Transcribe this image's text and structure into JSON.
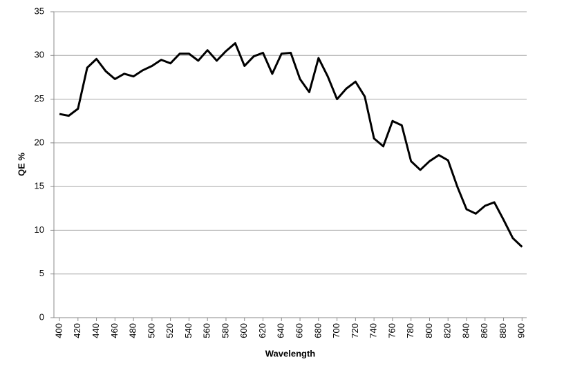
{
  "chart_data": {
    "type": "line",
    "x_label": "Wavelength",
    "y_label": "QE %",
    "x": [
      400,
      410,
      420,
      430,
      440,
      450,
      460,
      470,
      480,
      490,
      500,
      510,
      520,
      530,
      540,
      550,
      560,
      570,
      580,
      590,
      600,
      610,
      620,
      630,
      640,
      650,
      660,
      670,
      680,
      690,
      700,
      710,
      720,
      730,
      740,
      750,
      760,
      770,
      780,
      790,
      800,
      810,
      820,
      830,
      840,
      850,
      860,
      870,
      880,
      890,
      900
    ],
    "series": [
      {
        "color": "#000000",
        "values": [
          23.3,
          23.1,
          23.9,
          28.6,
          29.6,
          28.2,
          27.3,
          27.9,
          27.6,
          28.3,
          28.8,
          29.5,
          29.1,
          30.2,
          30.2,
          29.4,
          30.6,
          29.4,
          30.5,
          31.4,
          28.8,
          29.9,
          30.3,
          27.9,
          30.2,
          30.3,
          27.3,
          25.8,
          29.7,
          27.6,
          25.0,
          26.2,
          27.0,
          25.3,
          20.5,
          19.6,
          22.5,
          22.0,
          17.9,
          16.9,
          17.9,
          18.6,
          18.0,
          15.0,
          12.4,
          11.9,
          12.8,
          13.2,
          11.2,
          9.1,
          8.1
        ]
      }
    ],
    "xlim": [
      394,
      905
    ],
    "xticks": [
      400,
      420,
      440,
      460,
      480,
      500,
      520,
      540,
      560,
      580,
      600,
      620,
      640,
      660,
      680,
      700,
      720,
      740,
      760,
      780,
      800,
      820,
      840,
      860,
      880,
      900
    ],
    "ylim": [
      0,
      35
    ],
    "yticks": [
      0,
      5,
      10,
      15,
      20,
      25,
      30,
      35
    ],
    "grid": true
  }
}
